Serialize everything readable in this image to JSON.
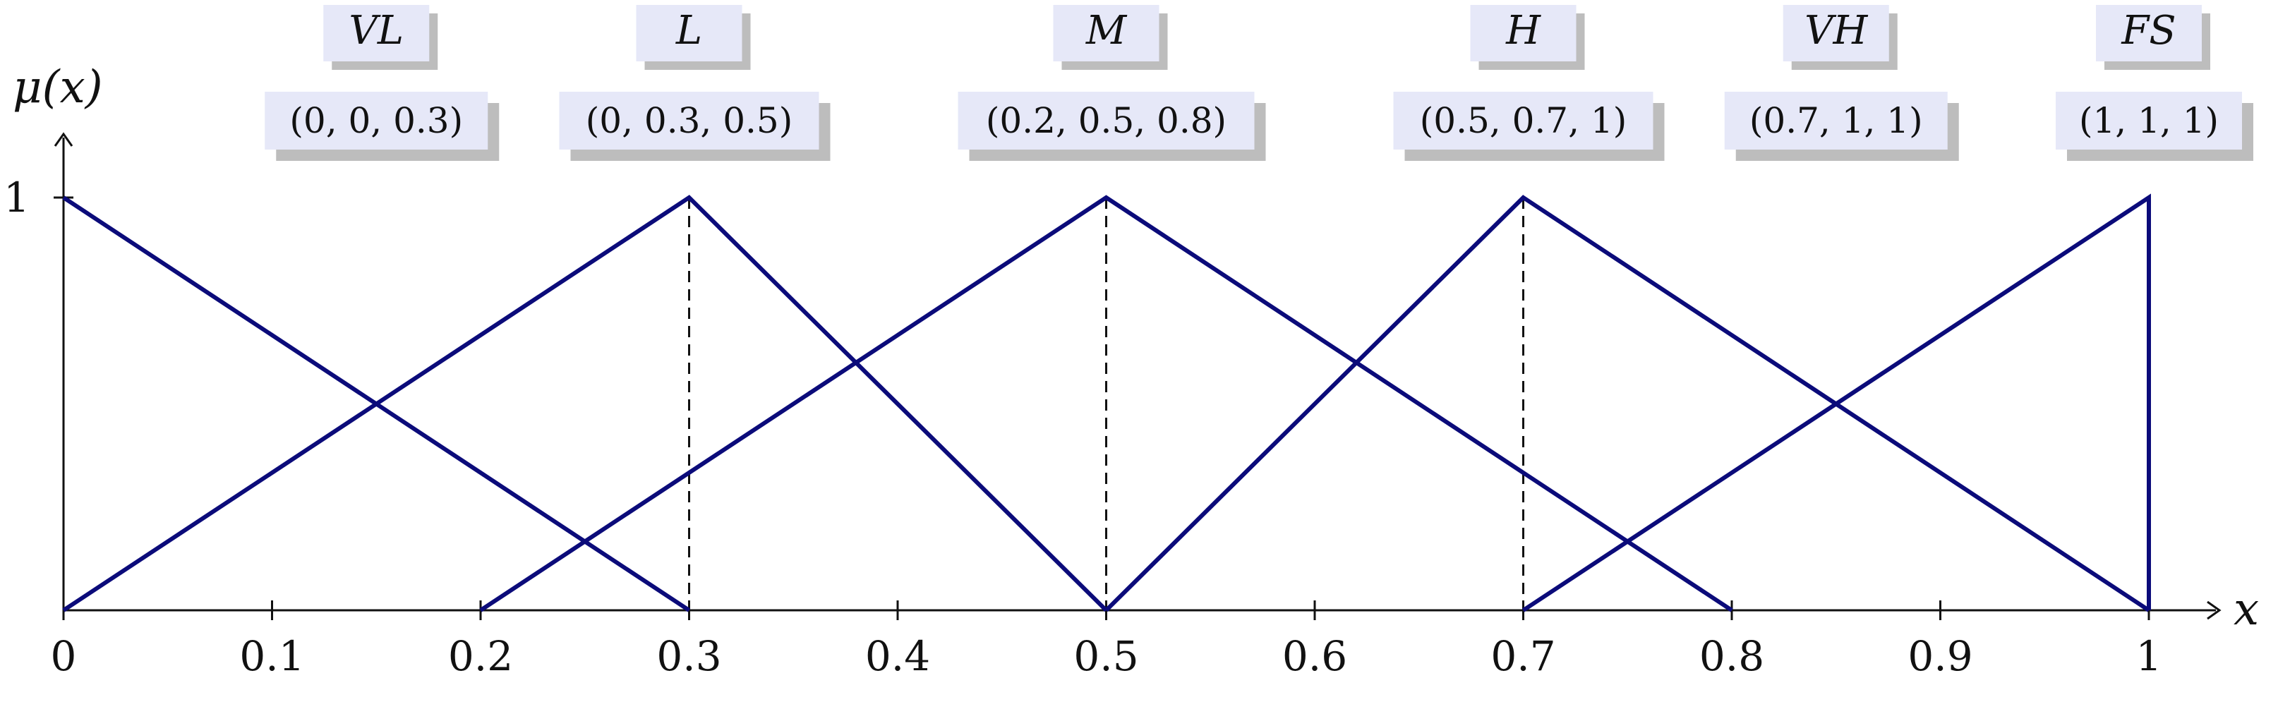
{
  "chart_data": {
    "type": "line",
    "xlabel": "x",
    "ylabel": "μ(x)",
    "xlim": [
      0,
      1
    ],
    "ylim": [
      0,
      1
    ],
    "x_ticks": [
      "0",
      "0.1",
      "0.2",
      "0.3",
      "0.4",
      "0.5",
      "0.6",
      "0.7",
      "0.8",
      "0.9",
      "1"
    ],
    "y_ticks": [
      "1"
    ],
    "grid": false,
    "series_color": "#0b0b7a",
    "label_bg_color": "#e6e8f8",
    "label_shadow_color": "#bdbdbd",
    "dashed_peaks": [
      0.3,
      0.5,
      0.7
    ],
    "series": [
      {
        "name": "VL",
        "params": "(0, 0, 0.3)",
        "x": [
          0,
          0.3
        ],
        "y": [
          1,
          0
        ]
      },
      {
        "name": "L",
        "params": "(0, 0.3, 0.5)",
        "x": [
          0,
          0.3,
          0.5
        ],
        "y": [
          0,
          1,
          0
        ]
      },
      {
        "name": "M",
        "params": "(0.2, 0.5, 0.8)",
        "x": [
          0.2,
          0.5,
          0.8
        ],
        "y": [
          0,
          1,
          0
        ]
      },
      {
        "name": "H",
        "params": "(0.5, 0.7, 1)",
        "x": [
          0.5,
          0.7,
          1
        ],
        "y": [
          0,
          1,
          0
        ]
      },
      {
        "name": "VH",
        "params": "(0.7, 1, 1)",
        "x": [
          0.7,
          1,
          1
        ],
        "y": [
          0,
          1,
          0
        ]
      },
      {
        "name": "FS",
        "params": "(1, 1, 1)",
        "x": [
          1,
          1
        ],
        "y": [
          1,
          0
        ]
      }
    ]
  }
}
